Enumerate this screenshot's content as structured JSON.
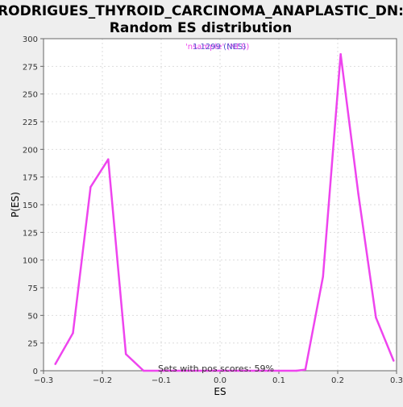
{
  "chart_data": {
    "type": "line",
    "title_line1": "RODRIGUES_THYROID_CARCINOMA_ANAPLASTIC_DN:",
    "title_line2": "Random ES distribution",
    "xlabel": "ES",
    "ylabel": "P(ES)",
    "xlim": [
      -0.3,
      0.3
    ],
    "ylim": [
      0,
      300
    ],
    "x_ticks": [
      -0.3,
      -0.2,
      -0.1,
      0.0,
      0.1,
      0.2,
      0.3
    ],
    "x_tick_labels": [
      "−0.3",
      "−0.2",
      "−0.1",
      "0.0",
      "0.1",
      "0.2",
      "0.3"
    ],
    "y_ticks": [
      0,
      25,
      50,
      75,
      100,
      125,
      150,
      175,
      200,
      225,
      250,
      275,
      300
    ],
    "y_tick_labels": [
      "0",
      "25",
      "50",
      "75",
      "100",
      "125",
      "150",
      "175",
      "200",
      "225",
      "250",
      "275",
      "300"
    ],
    "grid": true,
    "legend_overlap_text_a": "'nsample' (NES)",
    "legend_overlap_text_b": "1.1299 (NES)",
    "annotation": "Sets with pos scores: 59%",
    "colors": {
      "line": "#ee44ee",
      "legend_a": "#ee44ee",
      "legend_b": "#5555cc",
      "background": "#eeeeee",
      "plot_bg": "#ffffff",
      "grid": "#dddddd",
      "axis": "#666666"
    },
    "series": [
      {
        "x": [
          -0.28,
          -0.25,
          -0.22,
          -0.19,
          -0.16,
          -0.13,
          0.13,
          0.145,
          0.175,
          0.205,
          0.235,
          0.265,
          0.295
        ],
        "y": [
          6,
          34,
          166,
          191,
          15,
          0,
          0,
          1,
          85,
          286,
          160,
          48,
          9
        ]
      }
    ]
  }
}
